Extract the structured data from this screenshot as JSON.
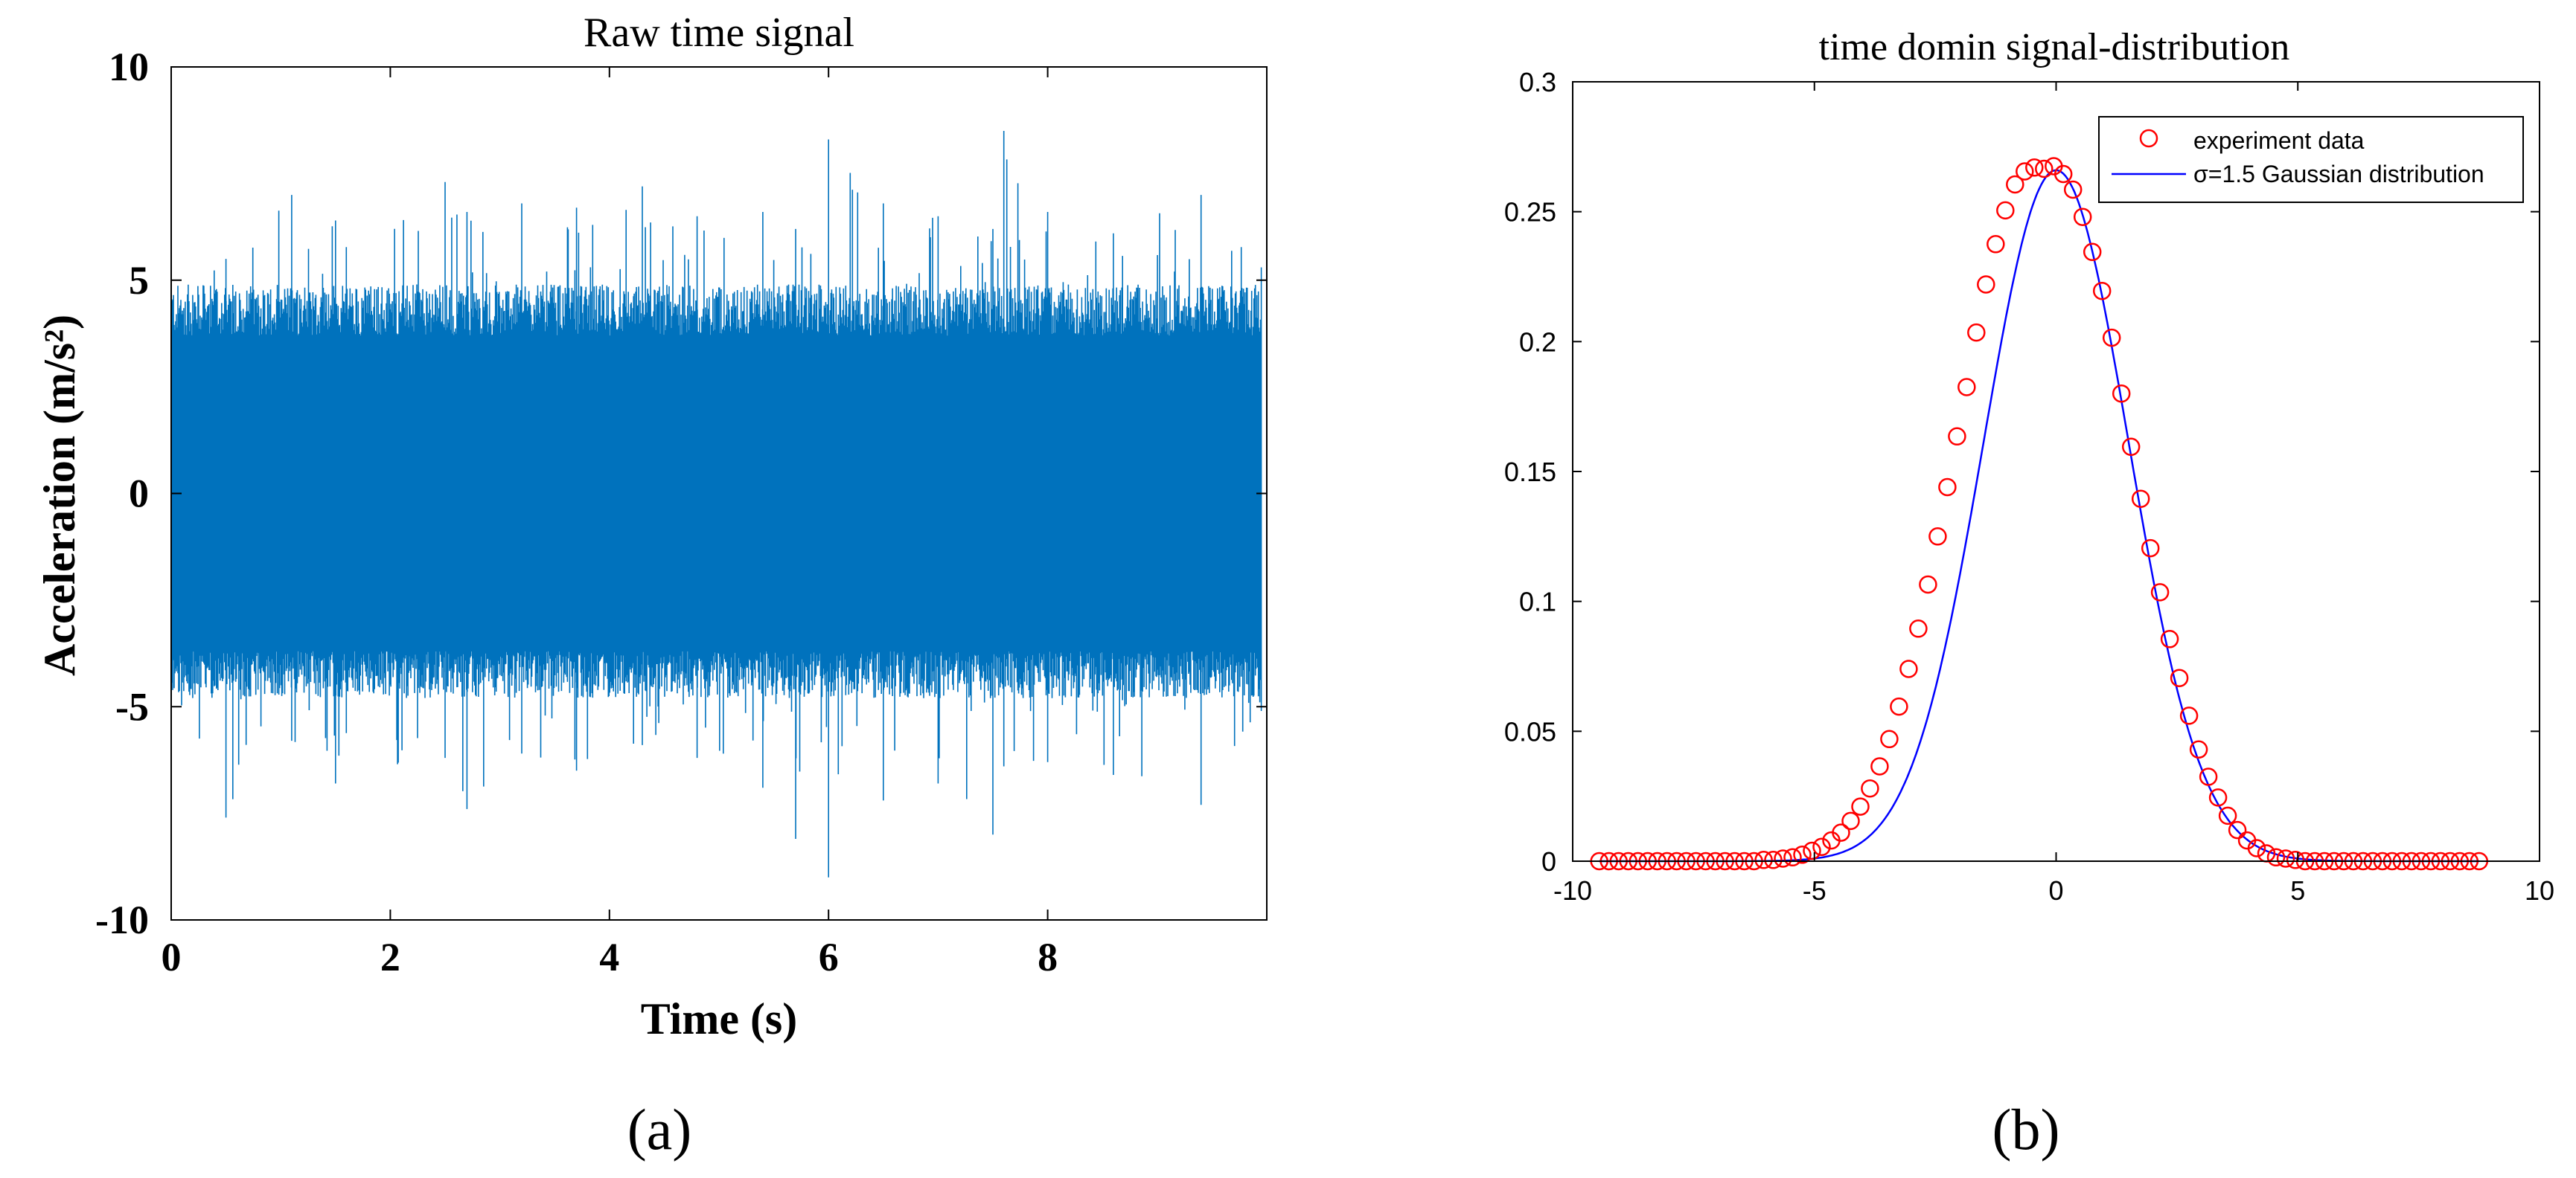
{
  "panels": [
    {
      "label": "(a)",
      "chart_data": {
        "type": "line",
        "title": "Raw time signal",
        "xlabel": "Time (s)",
        "ylabel": "Acceleration (m/s²)",
        "xlim": [
          0,
          10
        ],
        "ylim": [
          -10,
          10
        ],
        "x_ticks": [
          0,
          2,
          4,
          6,
          8
        ],
        "x_tick_labels": [
          "0",
          "2",
          "4",
          "6",
          "8"
        ],
        "y_ticks": [
          -10,
          -5,
          0,
          5,
          10
        ],
        "y_tick_labels": [
          "-10",
          "-5",
          "0",
          "5",
          "10"
        ],
        "grid": false,
        "series": [
          {
            "color": "#0072BD",
            "description_values": {
              "x": [
                0,
                0.5,
                1.1,
                1.5,
                2.5,
                2.7,
                3.2,
                3.7,
                4.3,
                4.8,
                5.4,
                5.7,
                6.0,
                6.5,
                7.0,
                7.5,
                7.6,
                8.0,
                8.6,
                9.4,
                9.95
              ],
              "y_max": [
                5.3,
                5.5,
                7.0,
                6.4,
                7.3,
                6.6,
                6.8,
                6.7,
                7.2,
                6.5,
                6.6,
                6.2,
                8.3,
                6.8,
                6.5,
                6.2,
                8.5,
                6.6,
                6.1,
                7.0,
                5.3
              ],
              "y_min": [
                -5.2,
                -7.6,
                -5.8,
                -6.8,
                -6.2,
                -7.4,
                -6.1,
                -6.5,
                -5.9,
                -6.2,
                -6.9,
                -8.1,
                -9.0,
                -7.2,
                -6.8,
                -8.0,
                -6.4,
                -6.3,
                -6.6,
                -7.3,
                -5.1
              ]
            }
          }
        ]
      }
    },
    {
      "label": "(b)",
      "chart_data": {
        "type": "scatter",
        "title": "time domin signal-distribution",
        "xlabel": "",
        "ylabel": "",
        "xlim": [
          -10,
          10
        ],
        "ylim": [
          0,
          0.3
        ],
        "x_ticks": [
          -10,
          -5,
          0,
          5,
          10
        ],
        "x_tick_labels": [
          "-10",
          "-5",
          "0",
          "5",
          "10"
        ],
        "y_ticks": [
          0,
          0.05,
          0.1,
          0.15,
          0.2,
          0.25,
          0.3
        ],
        "y_tick_labels": [
          "0",
          "0.05",
          "0.1",
          "0.15",
          "0.2",
          "0.25",
          "0.3"
        ],
        "grid": false,
        "legend_position": "top-right",
        "series": [
          {
            "name": "experiment data",
            "kind": "scatter",
            "marker": "circle",
            "color": "#FF0000",
            "x": [
              -9.45,
              -9.25,
              -9.05,
              -8.85,
              -8.65,
              -8.45,
              -8.25,
              -8.05,
              -7.85,
              -7.65,
              -7.45,
              -7.25,
              -7.05,
              -6.85,
              -6.65,
              -6.45,
              -6.25,
              -6.05,
              -5.85,
              -5.65,
              -5.45,
              -5.25,
              -5.05,
              -4.85,
              -4.65,
              -4.45,
              -4.25,
              -4.05,
              -3.85,
              -3.65,
              -3.45,
              -3.25,
              -3.05,
              -2.85,
              -2.65,
              -2.45,
              -2.25,
              -2.05,
              -1.85,
              -1.65,
              -1.45,
              -1.25,
              -1.05,
              -0.85,
              -0.65,
              -0.45,
              -0.25,
              -0.05,
              0.15,
              0.35,
              0.55,
              0.75,
              0.95,
              1.15,
              1.35,
              1.55,
              1.75,
              1.95,
              2.15,
              2.35,
              2.55,
              2.75,
              2.95,
              3.15,
              3.35,
              3.55,
              3.75,
              3.95,
              4.15,
              4.35,
              4.55,
              4.75,
              4.95,
              5.15,
              5.35,
              5.55,
              5.75,
              5.95,
              6.15,
              6.35,
              6.55,
              6.75,
              6.95,
              7.15,
              7.35,
              7.55,
              7.75,
              7.95,
              8.15,
              8.35,
              8.55,
              8.75
            ],
            "y": [
              0,
              0,
              0,
              0,
              0,
              0,
              0,
              0,
              0,
              0,
              0,
              0,
              0,
              0,
              0,
              0,
              0,
              0.0005,
              0.0005,
              0.001,
              0.0015,
              0.0025,
              0.004,
              0.0055,
              0.008,
              0.011,
              0.0155,
              0.021,
              0.028,
              0.0365,
              0.047,
              0.0595,
              0.074,
              0.0895,
              0.1065,
              0.125,
              0.144,
              0.1635,
              0.1825,
              0.2035,
              0.222,
              0.2375,
              0.2505,
              0.2605,
              0.2655,
              0.267,
              0.2665,
              0.2675,
              0.2645,
              0.2585,
              0.248,
              0.2345,
              0.2195,
              0.2015,
              0.18,
              0.1595,
              0.1395,
              0.1205,
              0.1035,
              0.0855,
              0.0705,
              0.056,
              0.043,
              0.0325,
              0.0245,
              0.0175,
              0.012,
              0.008,
              0.005,
              0.003,
              0.0015,
              0.001,
              0.0005,
              0,
              0,
              0,
              0,
              0,
              0,
              0,
              0,
              0,
              0,
              0,
              0,
              0,
              0,
              0,
              0,
              0,
              0,
              0
            ]
          },
          {
            "name": "σ=1.5 Gaussian distribution",
            "kind": "line",
            "color": "#0000FF",
            "sigma": 1.5,
            "mean": 0,
            "x_range": [
              -9.45,
              8.75
            ]
          }
        ]
      }
    }
  ]
}
